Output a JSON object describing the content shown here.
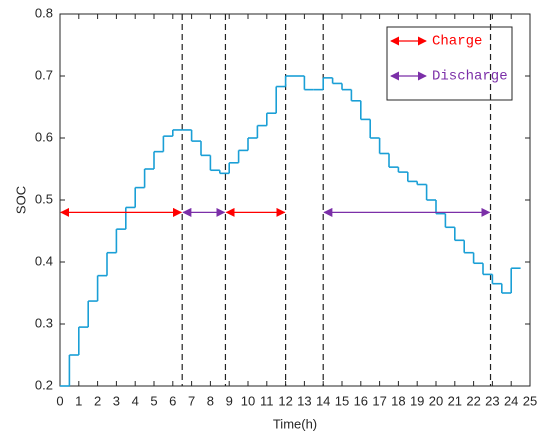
{
  "chart_data": {
    "type": "line",
    "step": "post",
    "xlabel": "Time(h)",
    "ylabel": "SOC",
    "xlim": [
      0,
      25
    ],
    "ylim": [
      0.2,
      0.8
    ],
    "xticks": [
      0,
      1,
      2,
      3,
      4,
      5,
      6,
      7,
      8,
      9,
      10,
      11,
      12,
      13,
      14,
      15,
      16,
      17,
      18,
      19,
      20,
      21,
      22,
      23,
      24,
      25
    ],
    "yticks": [
      0.2,
      0.3,
      0.4,
      0.5,
      0.6,
      0.7,
      0.8
    ],
    "x": [
      0,
      0.5,
      1,
      1.5,
      2,
      2.5,
      3,
      3.5,
      4,
      4.5,
      5,
      5.5,
      6,
      6.5,
      7,
      7.5,
      8,
      8.5,
      9,
      9.5,
      10,
      10.5,
      11,
      11.5,
      12,
      12.5,
      13,
      13.5,
      14,
      14.5,
      15,
      15.5,
      16,
      16.5,
      17,
      17.5,
      18,
      18.5,
      19,
      19.5,
      20,
      20.5,
      21,
      21.5,
      22,
      22.5,
      23,
      23.5,
      24,
      24.5
    ],
    "series": [
      {
        "name": "SOC",
        "color": "#1a9fd6",
        "values": [
          0.2,
          0.25,
          0.295,
          0.337,
          0.378,
          0.415,
          0.453,
          0.488,
          0.52,
          0.55,
          0.578,
          0.603,
          0.613,
          0.613,
          0.595,
          0.572,
          0.548,
          0.543,
          0.56,
          0.58,
          0.6,
          0.62,
          0.64,
          0.683,
          0.7,
          0.7,
          0.678,
          0.678,
          0.697,
          0.688,
          0.678,
          0.66,
          0.63,
          0.6,
          0.575,
          0.553,
          0.545,
          0.53,
          0.525,
          0.5,
          0.478,
          0.456,
          0.435,
          0.415,
          0.398,
          0.38,
          0.365,
          0.35,
          0.39,
          0.39
        ]
      }
    ],
    "vlines": [
      6.5,
      8.8,
      12,
      14,
      22.9
    ],
    "legend": [
      {
        "name": "Charge",
        "color": "#ff0000"
      },
      {
        "name": "Discharge",
        "color": "#7b2fa8"
      }
    ],
    "arrows": [
      {
        "x": [
          0,
          6.5
        ],
        "y": 0.48,
        "color": "#ff0000"
      },
      {
        "x": [
          6.5,
          8.8
        ],
        "y": 0.48,
        "color": "#7b2fa8"
      },
      {
        "x": [
          8.8,
          12
        ],
        "y": 0.48,
        "color": "#ff0000"
      },
      {
        "x": [
          14,
          22.9
        ],
        "y": 0.48,
        "color": "#7b2fa8"
      }
    ]
  }
}
